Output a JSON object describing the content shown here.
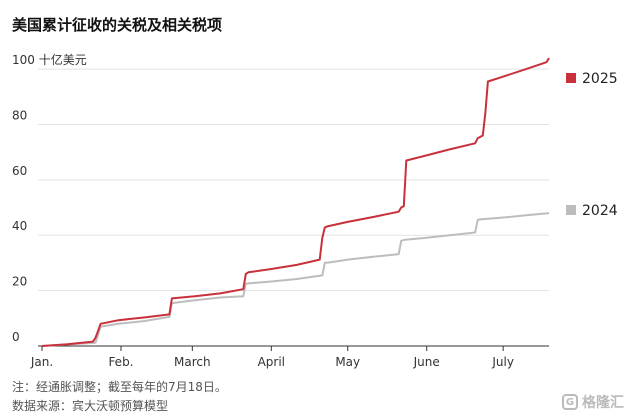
{
  "title": "美国累计征收的关税及相关税项",
  "notes": {
    "note": "注：经通胀调整；截至每年的7月18日。",
    "source": "数据来源：宾大沃顿预算模型"
  },
  "watermark": {
    "icon": "G",
    "text": "格隆汇"
  },
  "chart_data": {
    "type": "line",
    "ylim": [
      0,
      104
    ],
    "yticks": [
      {
        "value": 0,
        "label": "0"
      },
      {
        "value": 20,
        "label": "20"
      },
      {
        "value": 40,
        "label": "40"
      },
      {
        "value": 60,
        "label": "60"
      },
      {
        "value": 80,
        "label": "80"
      },
      {
        "value": 100,
        "label": "100 十亿美元"
      }
    ],
    "xlim": [
      0,
      199
    ],
    "xticks": [
      {
        "value": 0,
        "label": "Jan."
      },
      {
        "value": 31,
        "label": "Feb."
      },
      {
        "value": 59,
        "label": "March"
      },
      {
        "value": 90,
        "label": "April"
      },
      {
        "value": 120,
        "label": "May"
      },
      {
        "value": 151,
        "label": "June"
      },
      {
        "value": 181,
        "label": "July"
      }
    ],
    "grid": true,
    "legend": "right, at line ends",
    "series": [
      {
        "name": "2024",
        "color": "#bdbdbd",
        "x": [
          0,
          21,
          22,
          23,
          30,
          40,
          50,
          51,
          60,
          70,
          79,
          80,
          81,
          90,
          100,
          110,
          111,
          113,
          120,
          130,
          140,
          141,
          142,
          150,
          160,
          170,
          171,
          172,
          180,
          190,
          199
        ],
        "y": [
          0,
          1.2,
          4,
          7,
          8,
          9,
          10.5,
          15.5,
          16.5,
          17.5,
          18,
          22.5,
          22.6,
          23.3,
          24.2,
          25.5,
          30,
          30.2,
          31.2,
          32.2,
          33.2,
          38,
          38.3,
          39,
          40,
          41,
          45.5,
          45.7,
          46.3,
          47.2,
          48
        ]
      },
      {
        "name": "2025",
        "color": "#c8313b",
        "x": [
          0,
          10,
          20,
          21,
          22,
          23,
          30,
          40,
          50,
          51,
          60,
          70,
          79,
          80,
          81,
          90,
          100,
          109,
          110,
          111,
          112,
          120,
          130,
          140,
          141,
          142,
          143,
          150,
          160,
          170,
          171,
          173,
          174,
          175,
          180,
          190,
          198,
          199
        ],
        "y": [
          0,
          0.6,
          1.6,
          3,
          5.5,
          8,
          9.3,
          10.3,
          11.4,
          17.2,
          18,
          19,
          20.5,
          26,
          26.6,
          27.8,
          29.3,
          31.2,
          39,
          42.8,
          43.2,
          44.8,
          46.6,
          48.5,
          50,
          50.5,
          67,
          68.6,
          71,
          73.2,
          75,
          76,
          84,
          95.5,
          97,
          100,
          102.5,
          104
        ]
      }
    ]
  }
}
